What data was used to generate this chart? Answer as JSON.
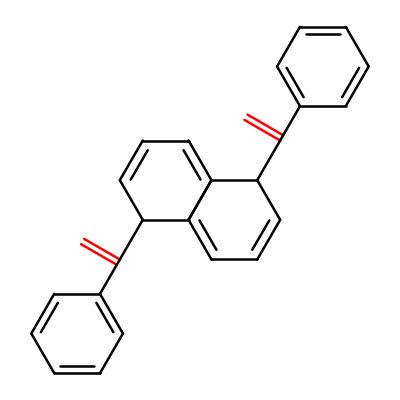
{
  "bg_color": "#ffffff",
  "bond_color": "#000000",
  "oxygen_color": "#ff0000",
  "line_width": 1.8,
  "figsize": [
    4.0,
    4.0
  ],
  "dpi": 100
}
